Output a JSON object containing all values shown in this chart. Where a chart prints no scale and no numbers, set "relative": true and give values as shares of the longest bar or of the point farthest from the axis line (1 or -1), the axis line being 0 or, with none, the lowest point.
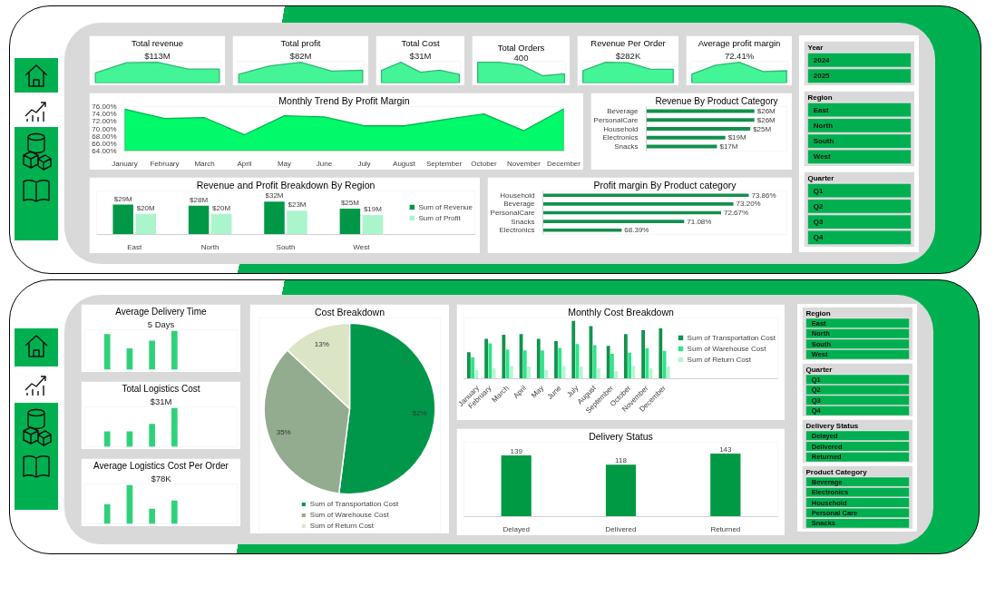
{
  "chart_data": [
    {
      "type": "area",
      "title": "Total revenue",
      "subtitle": "$113M",
      "relative": true,
      "tick_labels": false,
      "categories": [
        null,
        null,
        null,
        null,
        null
      ],
      "values": [
        0.49,
        0.98,
        1,
        0.67,
        0.67
      ],
      "color": "#43f597"
    },
    {
      "type": "area",
      "title": "Total profit",
      "subtitle": "$82M",
      "relative": true,
      "tick_labels": false,
      "categories": [
        null,
        null,
        null,
        null,
        null
      ],
      "values": [
        0.42,
        0.83,
        1,
        0.57,
        0.62
      ],
      "color": "#43f597"
    },
    {
      "type": "area",
      "title": "Total Cost",
      "subtitle": "$31M",
      "relative": true,
      "tick_labels": false,
      "categories": [
        null,
        null,
        null,
        null,
        null
      ],
      "values": [
        0.61,
        1,
        0.52,
        0.62,
        0.42
      ],
      "color": "#43f597"
    },
    {
      "type": "area",
      "title": "Total Orders",
      "subtitle": "400",
      "relative": true,
      "tick_labels": false,
      "categories": [
        null,
        null,
        null,
        null,
        null
      ],
      "values": [
        1,
        1,
        0.87,
        0.35,
        0.44
      ],
      "color": "#43f597"
    },
    {
      "type": "area",
      "title": "Revenue Per Order",
      "subtitle": "$282K",
      "relative": true,
      "tick_labels": false,
      "categories": [
        null,
        null,
        null,
        null,
        null
      ],
      "values": [
        0.6,
        1,
        0.98,
        0.66,
        0.66
      ],
      "color": "#43f597"
    },
    {
      "type": "area",
      "title": "Average profit margin",
      "subtitle": "72.41%",
      "relative": true,
      "tick_labels": false,
      "categories": [
        null,
        null,
        null,
        null,
        null
      ],
      "values": [
        0.43,
        0.86,
        1,
        0.55,
        0.59
      ],
      "color": "#43f597"
    },
    {
      "type": "area",
      "title": "Monthly Trend By Profit Margin",
      "categories": [
        "January",
        "February",
        "March",
        "April",
        "May",
        "June",
        "July",
        "August",
        "September",
        "October",
        "November",
        "December"
      ],
      "values": [
        75.3,
        72.8,
        73.0,
        68.4,
        73.5,
        73.2,
        70.8,
        70.8,
        72.5,
        74.0,
        69.5,
        75.4
      ],
      "color": "#00fa6a",
      "ylim": [
        64,
        76
      ],
      "yticks": [
        {
          "value": 64,
          "label": "64.00%"
        },
        {
          "value": 66,
          "label": "66.00%"
        },
        {
          "value": 68,
          "label": "68.00%"
        },
        {
          "value": 70,
          "label": "70.00%"
        },
        {
          "value": 72,
          "label": "72.00%"
        },
        {
          "value": 74,
          "label": "74.00%"
        },
        {
          "value": 76,
          "label": "76.00%"
        }
      ]
    },
    {
      "type": "bar",
      "orientation": "horizontal",
      "title": "Revenue By Product Category",
      "categories": [
        "Beverage",
        "PersonalCare",
        "Household",
        "Electronics",
        "Snacks"
      ],
      "values": [
        26,
        26,
        25,
        19,
        17
      ],
      "value_labels": [
        "$26M",
        "$26M",
        "$25M",
        "$19M",
        "$17M"
      ],
      "color": "#13904c",
      "tick_labels": "y"
    },
    {
      "type": "bar",
      "title": "Revenue and Profit Breakdown By Region",
      "categories": [
        "East",
        "North",
        "South",
        "West"
      ],
      "series": [
        {
          "name": "Sum of Revenue",
          "color": "#009846",
          "values": [
            29,
            28,
            32,
            25
          ],
          "value_labels": [
            "$29M",
            "$28M",
            "$32M",
            "$25M"
          ]
        },
        {
          "name": "Sum of Profit",
          "color": "#abf5cc",
          "values": [
            20,
            20,
            23,
            19
          ],
          "value_labels": [
            "$20M",
            "$20M",
            "$23M",
            "$19M"
          ]
        }
      ],
      "legend": "right",
      "tick_labels": "x"
    },
    {
      "type": "bar",
      "orientation": "horizontal",
      "title": "Profit margin By Product category",
      "categories": [
        "Household",
        "Beverage",
        "PersonalCare",
        "Snacks",
        "Electronics"
      ],
      "values": [
        73.86,
        73.2,
        72.67,
        71.08,
        68.39
      ],
      "value_labels": [
        "73.86%",
        "73.20%",
        "72.67%",
        "71.08%",
        "68.39%"
      ],
      "color": "#13904c",
      "xlim": [
        65,
        75.5
      ],
      "tick_labels": "y"
    },
    {
      "type": "other",
      "title": "Year",
      "categories": [
        "2024",
        "2025"
      ],
      "color": "#00b050"
    },
    {
      "type": "other",
      "title": "Region",
      "categories": [
        "East",
        "North",
        "South",
        "West"
      ],
      "color": "#00b050"
    },
    {
      "type": "other",
      "title": "Quarter",
      "categories": [
        "Q1",
        "Q2",
        "Q3",
        "Q4"
      ],
      "color": "#00b050"
    },
    {
      "type": "bar",
      "title": "Average Delivery Time",
      "subtitle": "5 Days",
      "relative": true,
      "tick_labels": false,
      "categories": [
        null,
        null,
        null,
        null
      ],
      "values": [
        0.92,
        0.55,
        0.75,
        1
      ],
      "color": "#2fd27a"
    },
    {
      "type": "bar",
      "title": "Total Logistics Cost",
      "subtitle": "$31M",
      "relative": true,
      "tick_labels": false,
      "categories": [
        null,
        null,
        null,
        null
      ],
      "values": [
        0.4,
        0.4,
        0.59,
        1
      ],
      "color": "#2fd27a"
    },
    {
      "type": "bar",
      "title": "Average Logistics Cost Per Order",
      "subtitle": "$78K",
      "relative": true,
      "tick_labels": false,
      "categories": [
        null,
        null,
        null,
        null
      ],
      "values": [
        0.51,
        1,
        0.39,
        0.6
      ],
      "color": "#2fd27a"
    },
    {
      "type": "pie",
      "title": "Cost Breakdown",
      "categories": [
        "Sum of Transportation Cost",
        "Sum of Warehouse Cost",
        "Sum of Return Cost"
      ],
      "values": [
        52,
        35,
        13
      ],
      "colors": [
        "#00974a",
        "#93ab8f",
        "#dbe4c5"
      ],
      "value_labels": [
        "52%",
        "35%",
        "13%"
      ],
      "legend": "bottom"
    },
    {
      "type": "bar",
      "title": "Monthly Cost Breakdown",
      "relative": true,
      "categories": [
        "January",
        "February",
        "March",
        "April",
        "May",
        "June",
        "July",
        "August",
        "September",
        "October",
        "November",
        "December"
      ],
      "series": [
        {
          "name": "Sum of Transportation Cost",
          "color": "#12934b",
          "values": [
            0.46,
            0.69,
            0.76,
            0.77,
            0.69,
            0.65,
            1,
            0.91,
            0.57,
            0.77,
            0.84,
            0.87
          ]
        },
        {
          "name": "Sum of Warehouse Cost",
          "color": "#2de58a",
          "values": [
            0.37,
            0.61,
            0.5,
            0.49,
            0.49,
            0.53,
            0.6,
            0.58,
            0.43,
            0.45,
            0.53,
            0.48
          ]
        },
        {
          "name": "Sum of Return Cost",
          "color": "#b8f4d4",
          "values": [
            0.15,
            0.18,
            0.22,
            0.21,
            0.15,
            0.22,
            0.21,
            0.18,
            0.13,
            0.22,
            0.18,
            0.21
          ]
        }
      ],
      "legend": "right"
    },
    {
      "type": "bar",
      "title": "Delivery Status",
      "categories": [
        "Delayed",
        "Delivered",
        "Returned"
      ],
      "values": [
        139,
        118,
        143
      ],
      "color": "#009a44",
      "data_labels": true,
      "tick_labels": "x"
    },
    {
      "type": "other",
      "title": "Region",
      "categories": [
        "East",
        "North",
        "South",
        "West"
      ],
      "color": "#00b050"
    },
    {
      "type": "other",
      "title": "Quarter",
      "categories": [
        "Q1",
        "Q2",
        "Q3",
        "Q4"
      ],
      "color": "#00b050"
    },
    {
      "type": "other",
      "title": "Delivery Status",
      "categories": [
        "Delayed",
        "Delivered",
        "Returned"
      ],
      "color": "#00b050"
    },
    {
      "type": "other",
      "title": "Product Category",
      "categories": [
        "Beverage",
        "Electronics",
        "Household",
        "Personal Care",
        "Snacks"
      ],
      "color": "#00b050"
    }
  ]
}
